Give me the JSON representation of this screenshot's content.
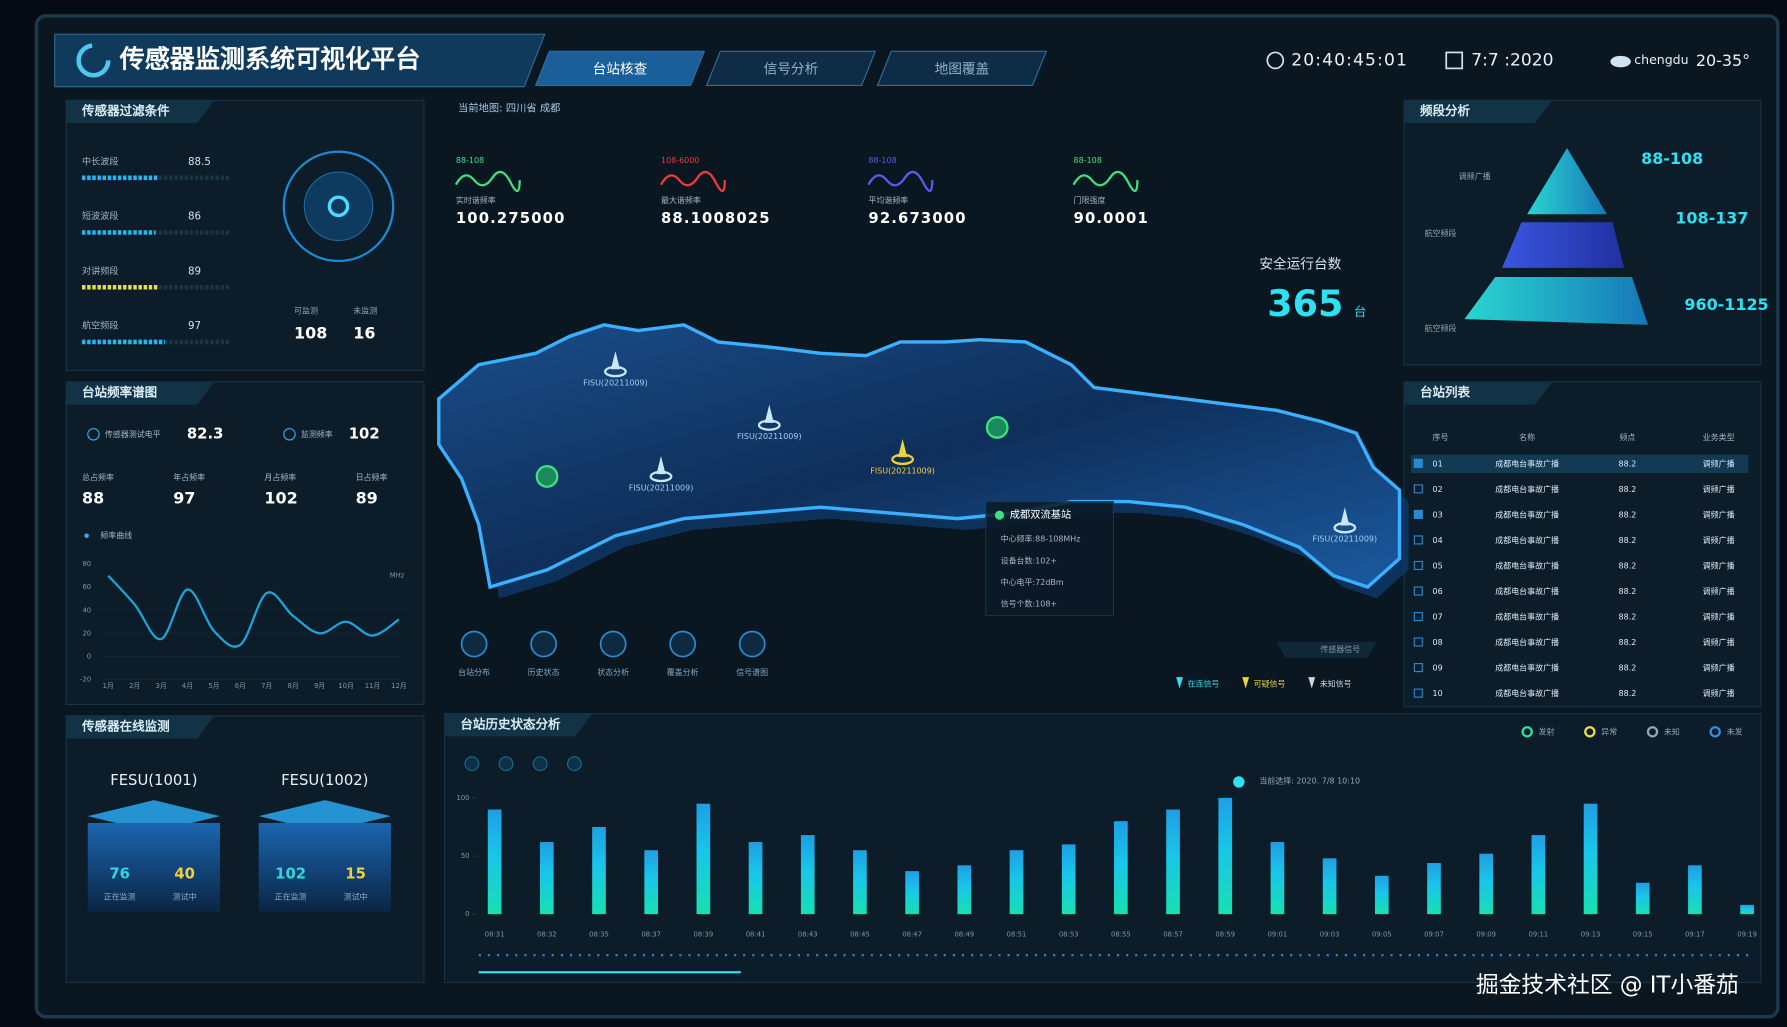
{
  "header": {
    "title": "传感器监测系统可视化平台",
    "tabs": [
      "台站核查",
      "信号分析",
      "地图覆盖"
    ],
    "time": "20:40:45:01",
    "date": "7:7 :2020",
    "city": "chengdu",
    "temperature": "20-35°"
  },
  "filter_panel": {
    "title": "传感器过滤条件",
    "items": [
      {
        "label": "中长波段",
        "value": 88.5
      },
      {
        "label": "短波波段",
        "value": 86
      },
      {
        "label": "对讲频段",
        "value": 89
      },
      {
        "label": "航空频段",
        "value": 97
      }
    ],
    "counts": [
      {
        "label": "可监测",
        "value": 108
      },
      {
        "label": "未监测",
        "value": 16
      }
    ]
  },
  "spectrum_panel": {
    "title": "台站频率谱图",
    "metrics": [
      {
        "label": "传感器测试电平",
        "value": 82.3
      },
      {
        "label": "监测频率",
        "value": 102
      }
    ],
    "stats": [
      {
        "label": "总占频率",
        "value": 88
      },
      {
        "label": "年占频率",
        "value": 97
      },
      {
        "label": "月占频率",
        "value": 102
      },
      {
        "label": "日占频率",
        "value": 89
      }
    ],
    "chart": {
      "type": "line",
      "title": "频率曲线",
      "y_unit": "MHz",
      "categories": [
        "1月",
        "2月",
        "3月",
        "4月",
        "5月",
        "6月",
        "7月",
        "8月",
        "9月",
        "10月",
        "11月",
        "12月"
      ],
      "values": [
        70,
        45,
        15,
        58,
        22,
        10,
        55,
        35,
        20,
        30,
        18,
        32
      ],
      "color": "#1fa3d8",
      "ylim": [
        -20,
        80
      ],
      "yticks": [
        -20,
        0,
        20,
        40,
        60,
        80
      ]
    }
  },
  "online_panel": {
    "title": "传感器在线监测",
    "devices": [
      {
        "name": "FESU(1001)",
        "stats": [
          {
            "value": 76,
            "label": "正在监测"
          },
          {
            "value": 40,
            "label": "测试中"
          }
        ]
      },
      {
        "name": "FESU(1002)",
        "stats": [
          {
            "value": 102,
            "label": "正在监测"
          },
          {
            "value": 15,
            "label": "测试中"
          }
        ]
      }
    ]
  },
  "map": {
    "location": "当前地图: 四川省 成都",
    "metrics": [
      {
        "range": "88-108",
        "label": "实时谐频率",
        "value": "100.275000"
      },
      {
        "range": "108-6000",
        "label": "最大谐频率",
        "value": "88.1008025"
      },
      {
        "range": "88-108",
        "label": "平均谐频率",
        "value": "92.673000"
      },
      {
        "range": "88-108",
        "label": "门限强度",
        "value": "90.0001"
      }
    ],
    "safe": {
      "label": "安全运行台数",
      "value": 365,
      "unit": "台"
    },
    "markers": [
      "FISU(20211009)",
      "FISU(20211009)",
      "FISU(20211009)",
      "FISU(20211009)",
      "FISU(20211009)"
    ],
    "popup": {
      "title": "成都双流基站",
      "lines": [
        "中心频率:88-108MHz",
        "设备台数:102+",
        "中心电平:72dBm",
        "信号个数:108+"
      ]
    },
    "tools": [
      "台站分布",
      "历史状态",
      "状态分析",
      "覆盖分析",
      "信号谱图"
    ],
    "signal_title": "传感器信号",
    "legend": [
      "在连信号",
      "可疑信号",
      "未知信号"
    ]
  },
  "band_panel": {
    "title": "频段分析",
    "bands": [
      "88-108",
      "108-137",
      "960-1125"
    ],
    "labels": [
      "调频广播",
      "航空频段",
      "航空频段"
    ]
  },
  "station_list": {
    "title": "台站列表",
    "columns": [
      "序号",
      "名称",
      "频点",
      "业务类型"
    ],
    "rows": [
      [
        "01",
        "成都电台事故广播",
        "88.2",
        "调频广播"
      ],
      [
        "02",
        "成都电台事故广播",
        "88.2",
        "调频广播"
      ],
      [
        "03",
        "成都电台事故广播",
        "88.2",
        "调频广播"
      ],
      [
        "04",
        "成都电台事故广播",
        "88.2",
        "调频广播"
      ],
      [
        "05",
        "成都电台事故广播",
        "88.2",
        "调频广播"
      ],
      [
        "06",
        "成都电台事故广播",
        "88.2",
        "调频广播"
      ],
      [
        "07",
        "成都电台事故广播",
        "88.2",
        "调频广播"
      ],
      [
        "08",
        "成都电台事故广播",
        "88.2",
        "调频广播"
      ],
      [
        "09",
        "成都电台事故广播",
        "88.2",
        "调频广播"
      ],
      [
        "10",
        "成都电台事故广播",
        "88.2",
        "调频广播"
      ]
    ]
  },
  "history_panel": {
    "title": "台站历史状态分析",
    "legend": [
      "发射",
      "异常",
      "未知",
      "未发"
    ],
    "tooltip": "当前选择: 2020. 7/8 10:10",
    "chart": {
      "type": "bar",
      "categories": [
        "08:31",
        "08:32",
        "08:35",
        "08:37",
        "08:39",
        "08:41",
        "08:43",
        "08:45",
        "08:47",
        "08:49",
        "08:51",
        "08:53",
        "08:55",
        "08:57",
        "08:59",
        "09:01",
        "09:03",
        "09:05",
        "09:07",
        "09:09",
        "09:11",
        "09:13",
        "09:15",
        "09:17",
        "09:19"
      ],
      "values": [
        90,
        62,
        75,
        55,
        95,
        62,
        68,
        55,
        37,
        42,
        55,
        60,
        80,
        90,
        100,
        62,
        48,
        33,
        44,
        52,
        68,
        95,
        27,
        42,
        8
      ],
      "ylim": [
        0,
        100
      ],
      "yticks": [
        0,
        50,
        100
      ]
    }
  },
  "watermark": "掘金技术社区 @ IT小番茄"
}
